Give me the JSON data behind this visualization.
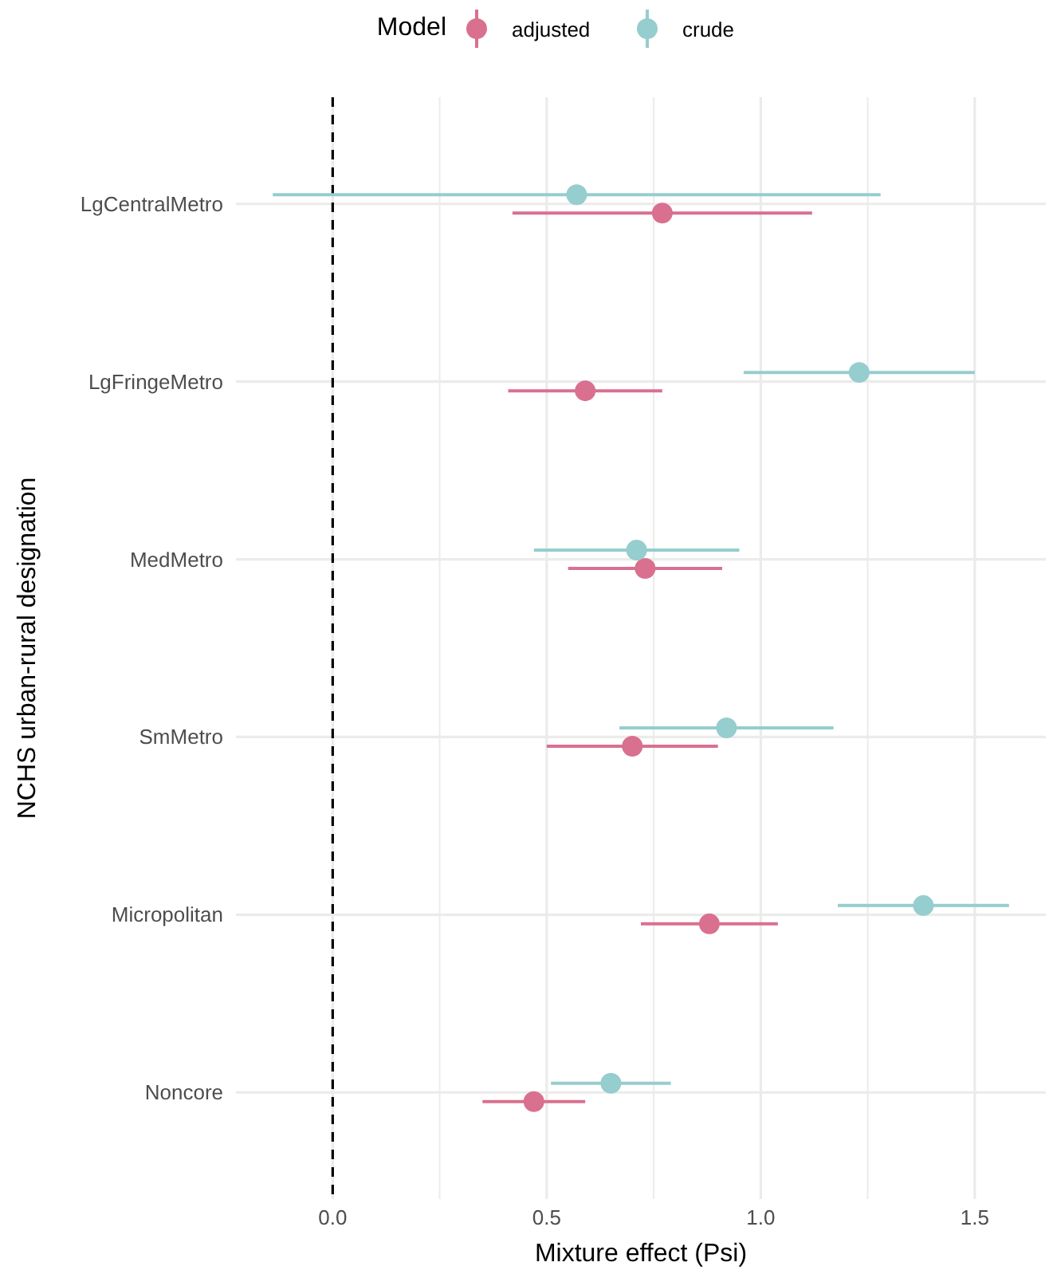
{
  "chart_data": {
    "type": "scatter",
    "orientation": "horizontal",
    "xlabel": "Mixture effect (Psi)",
    "ylabel": "NCHS urban-rural designation",
    "legend_title": "Model",
    "legend": "top",
    "categories": [
      "LgCentralMetro",
      "LgFringeMetro",
      "MedMetro",
      "SmMetro",
      "Micropolitan",
      "Noncore"
    ],
    "series": [
      {
        "name": "adjusted",
        "color": "#d9708f",
        "values": [
          0.77,
          0.59,
          0.73,
          0.7,
          0.88,
          0.47
        ],
        "errors": [
          [
            0.42,
            1.12
          ],
          [
            0.41,
            0.77
          ],
          [
            0.55,
            0.91
          ],
          [
            0.5,
            0.9
          ],
          [
            0.72,
            1.04
          ],
          [
            0.35,
            0.59
          ]
        ]
      },
      {
        "name": "crude",
        "color": "#96cdce",
        "values": [
          0.57,
          1.23,
          0.71,
          0.92,
          1.38,
          0.65
        ],
        "errors": [
          [
            -0.14,
            1.28
          ],
          [
            0.96,
            1.5
          ],
          [
            0.47,
            0.95
          ],
          [
            0.67,
            1.17
          ],
          [
            1.18,
            1.58
          ],
          [
            0.51,
            0.79
          ]
        ]
      }
    ],
    "xlim": [
      -0.226,
      1.666
    ],
    "xticks": [
      {
        "value": 0,
        "label": "0.0"
      },
      {
        "value": 0.25,
        "label": null
      },
      0.5,
      {
        "value": 0.75,
        "label": null
      },
      {
        "value": 1,
        "label": "1.0"
      },
      {
        "value": 1.25,
        "label": null
      },
      1.5
    ],
    "ref_lines": [
      {
        "axis": "x",
        "value": 0,
        "line_style": "dashed",
        "color": "#000000"
      }
    ],
    "grid": true,
    "marker": "circle"
  }
}
